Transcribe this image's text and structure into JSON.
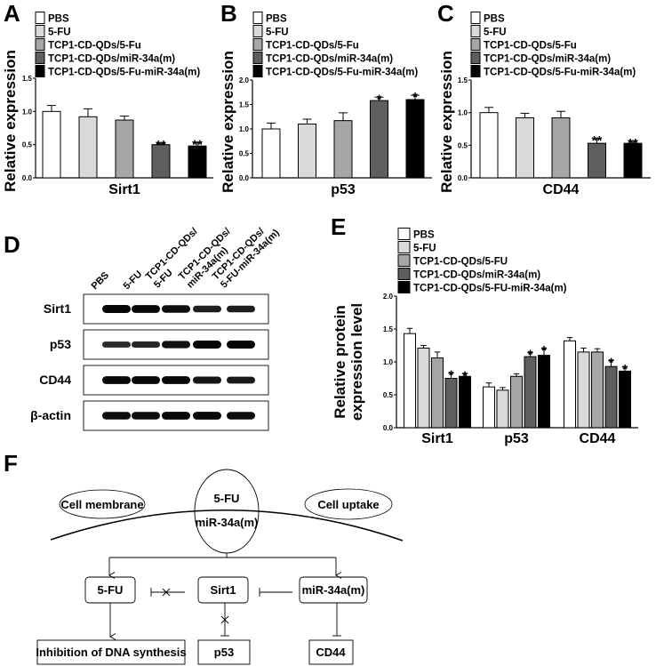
{
  "panel_labels": {
    "a": "A",
    "b": "B",
    "c": "C",
    "d": "D",
    "e": "E",
    "f": "F"
  },
  "colors": {
    "PBS": "#ffffff",
    "5-FU": "#d9d9d9",
    "TCP1-CD-QDs/5-Fu": "#a6a6a6",
    "TCP1-CD-QDs/miR-34a(m)": "#5e5e5e",
    "TCP1-CD-QDs/5-Fu-miR-34a(m)": "#000000"
  },
  "chart_data": [
    {
      "panel": "A",
      "type": "bar",
      "legend": [
        "PBS",
        "5-FU",
        "TCP1-CD-QDs/5-Fu",
        "TCP1-CD-QDs/miR-34a(m)",
        "TCP1-CD-QDs/5-Fu-miR-34a(m)"
      ],
      "categories": [
        "Sirt1"
      ],
      "ylabel": "Relative expression",
      "ylim": [
        0,
        1.5
      ],
      "yticks": [
        "0.0",
        "0.5",
        "1.0",
        "1.5"
      ],
      "series": [
        {
          "name": "PBS",
          "values": [
            1.0
          ],
          "error": [
            0.09
          ],
          "sig": [
            ""
          ]
        },
        {
          "name": "5-FU",
          "values": [
            0.92
          ],
          "error": [
            0.12
          ],
          "sig": [
            ""
          ]
        },
        {
          "name": "TCP1-CD-QDs/5-Fu",
          "values": [
            0.87
          ],
          "error": [
            0.06
          ],
          "sig": [
            ""
          ]
        },
        {
          "name": "TCP1-CD-QDs/miR-34a(m)",
          "values": [
            0.5
          ],
          "error": [
            0.02
          ],
          "sig": [
            "**"
          ]
        },
        {
          "name": "TCP1-CD-QDs/5-Fu-miR-34a(m)",
          "values": [
            0.48
          ],
          "error": [
            0.05
          ],
          "sig": [
            "**"
          ]
        }
      ]
    },
    {
      "panel": "B",
      "type": "bar",
      "legend": [
        "PBS",
        "5-FU",
        "TCP1-CD-QDs/5-Fu",
        "TCP1-CD-QDs/miR-34a(m)",
        "TCP1-CD-QDs/5-Fu-miR-34a(m)"
      ],
      "categories": [
        "p53"
      ],
      "ylabel": "Relative expression",
      "ylim": [
        0,
        2.0
      ],
      "yticks": [
        "0.0",
        "0.5",
        "1.0",
        "1.5",
        "2.0"
      ],
      "series": [
        {
          "name": "PBS",
          "values": [
            1.0
          ],
          "error": [
            0.12
          ],
          "sig": [
            ""
          ]
        },
        {
          "name": "5-FU",
          "values": [
            1.1
          ],
          "error": [
            0.1
          ],
          "sig": [
            ""
          ]
        },
        {
          "name": "TCP1-CD-QDs/5-Fu",
          "values": [
            1.17
          ],
          "error": [
            0.16
          ],
          "sig": [
            ""
          ]
        },
        {
          "name": "TCP1-CD-QDs/miR-34a(m)",
          "values": [
            1.58
          ],
          "error": [
            0.07
          ],
          "sig": [
            "*"
          ]
        },
        {
          "name": "TCP1-CD-QDs/5-Fu-miR-34a(m)",
          "values": [
            1.6
          ],
          "error": [
            0.09
          ],
          "sig": [
            "*"
          ]
        }
      ]
    },
    {
      "panel": "C",
      "type": "bar",
      "legend": [
        "PBS",
        "5-FU",
        "TCP1-CD-QDs/5-Fu",
        "TCP1-CD-QDs/miR-34a(m)",
        "TCP1-CD-QDs/5-Fu-miR-34a(m)"
      ],
      "categories": [
        "CD44"
      ],
      "ylabel": "Relative expression",
      "ylim": [
        0,
        1.5
      ],
      "yticks": [
        "0.0",
        "0.5",
        "1.0",
        "1.5"
      ],
      "series": [
        {
          "name": "PBS",
          "values": [
            1.0
          ],
          "error": [
            0.08
          ],
          "sig": [
            ""
          ]
        },
        {
          "name": "5-FU",
          "values": [
            0.92
          ],
          "error": [
            0.07
          ],
          "sig": [
            ""
          ]
        },
        {
          "name": "TCP1-CD-QDs/5-Fu",
          "values": [
            0.92
          ],
          "error": [
            0.1
          ],
          "sig": [
            ""
          ]
        },
        {
          "name": "TCP1-CD-QDs/miR-34a(m)",
          "values": [
            0.53
          ],
          "error": [
            0.07
          ],
          "sig": [
            "**"
          ]
        },
        {
          "name": "TCP1-CD-QDs/5-Fu-miR-34a(m)",
          "values": [
            0.53
          ],
          "error": [
            0.03
          ],
          "sig": [
            "**"
          ]
        }
      ]
    },
    {
      "panel": "E",
      "type": "bar",
      "legend": [
        "PBS",
        "5-FU",
        "TCP1-CD-QDs/5-FU",
        "TCP1-CD-QDs/miR-34a(m)",
        "TCP1-CD-QDs/5-FU-miR-34a(m)"
      ],
      "categories": [
        "Sirt1",
        "p53",
        "CD44"
      ],
      "ylabel": [
        "Relative protein",
        "expression level"
      ],
      "ylim": [
        0,
        2.0
      ],
      "yticks": [
        "0.0",
        "0.5",
        "1.0",
        "1.5",
        "2.0"
      ],
      "series": [
        {
          "name": "PBS",
          "values": [
            1.43,
            0.62,
            1.32
          ],
          "error": [
            0.08,
            0.06,
            0.05
          ],
          "sig": [
            "",
            "",
            ""
          ]
        },
        {
          "name": "5-FU",
          "values": [
            1.21,
            0.57,
            1.15
          ],
          "error": [
            0.04,
            0.04,
            0.06
          ],
          "sig": [
            "",
            "",
            ""
          ]
        },
        {
          "name": "TCP1-CD-QDs/5-FU",
          "values": [
            1.06,
            0.78,
            1.15
          ],
          "error": [
            0.09,
            0.04,
            0.05
          ],
          "sig": [
            "",
            "",
            ""
          ]
        },
        {
          "name": "TCP1-CD-QDs/miR-34a(m)",
          "values": [
            0.75,
            1.08,
            0.93
          ],
          "error": [
            0.08,
            0.06,
            0.09
          ],
          "sig": [
            "*",
            "*",
            "*"
          ]
        },
        {
          "name": "TCP1-CD-QDs/5-FU-miR-34a(m)",
          "values": [
            0.78,
            1.1,
            0.86
          ],
          "error": [
            0.04,
            0.1,
            0.06
          ],
          "sig": [
            "*",
            "*",
            "*"
          ]
        }
      ]
    }
  ],
  "western_blot": {
    "lanes": [
      [
        "PBS"
      ],
      [
        "5-FU"
      ],
      [
        "TCP1-CD-QDs/",
        "5-FU"
      ],
      [
        "TCP1-CD-QDs/",
        "miR-34a(m)"
      ],
      [
        "TCP1-CD-QDs/",
        "5-FU-miR-34a(m)"
      ]
    ],
    "rows": [
      {
        "label": "Sirt1",
        "intensity": [
          1.0,
          0.95,
          0.9,
          0.7,
          0.72
        ]
      },
      {
        "label": "p53",
        "intensity": [
          0.55,
          0.6,
          0.85,
          1.0,
          1.0
        ]
      },
      {
        "label": "CD44",
        "intensity": [
          0.95,
          0.95,
          0.95,
          0.8,
          0.75
        ]
      },
      {
        "label": "β-actin",
        "intensity": [
          0.9,
          0.9,
          0.95,
          0.95,
          0.9
        ]
      }
    ]
  },
  "diagram": {
    "cell_membrane": "Cell membrane",
    "cell_uptake": "Cell uptake",
    "carrier_line1": "5-FU",
    "carrier_line2": "miR-34a(m)",
    "node_5fu": "5-FU",
    "node_sirt1": "Sirt1",
    "node_mir": "miR-34a(m)",
    "node_dna": "Inhibition of DNA synthesis",
    "node_p53": "p53",
    "node_cd44": "CD44"
  }
}
